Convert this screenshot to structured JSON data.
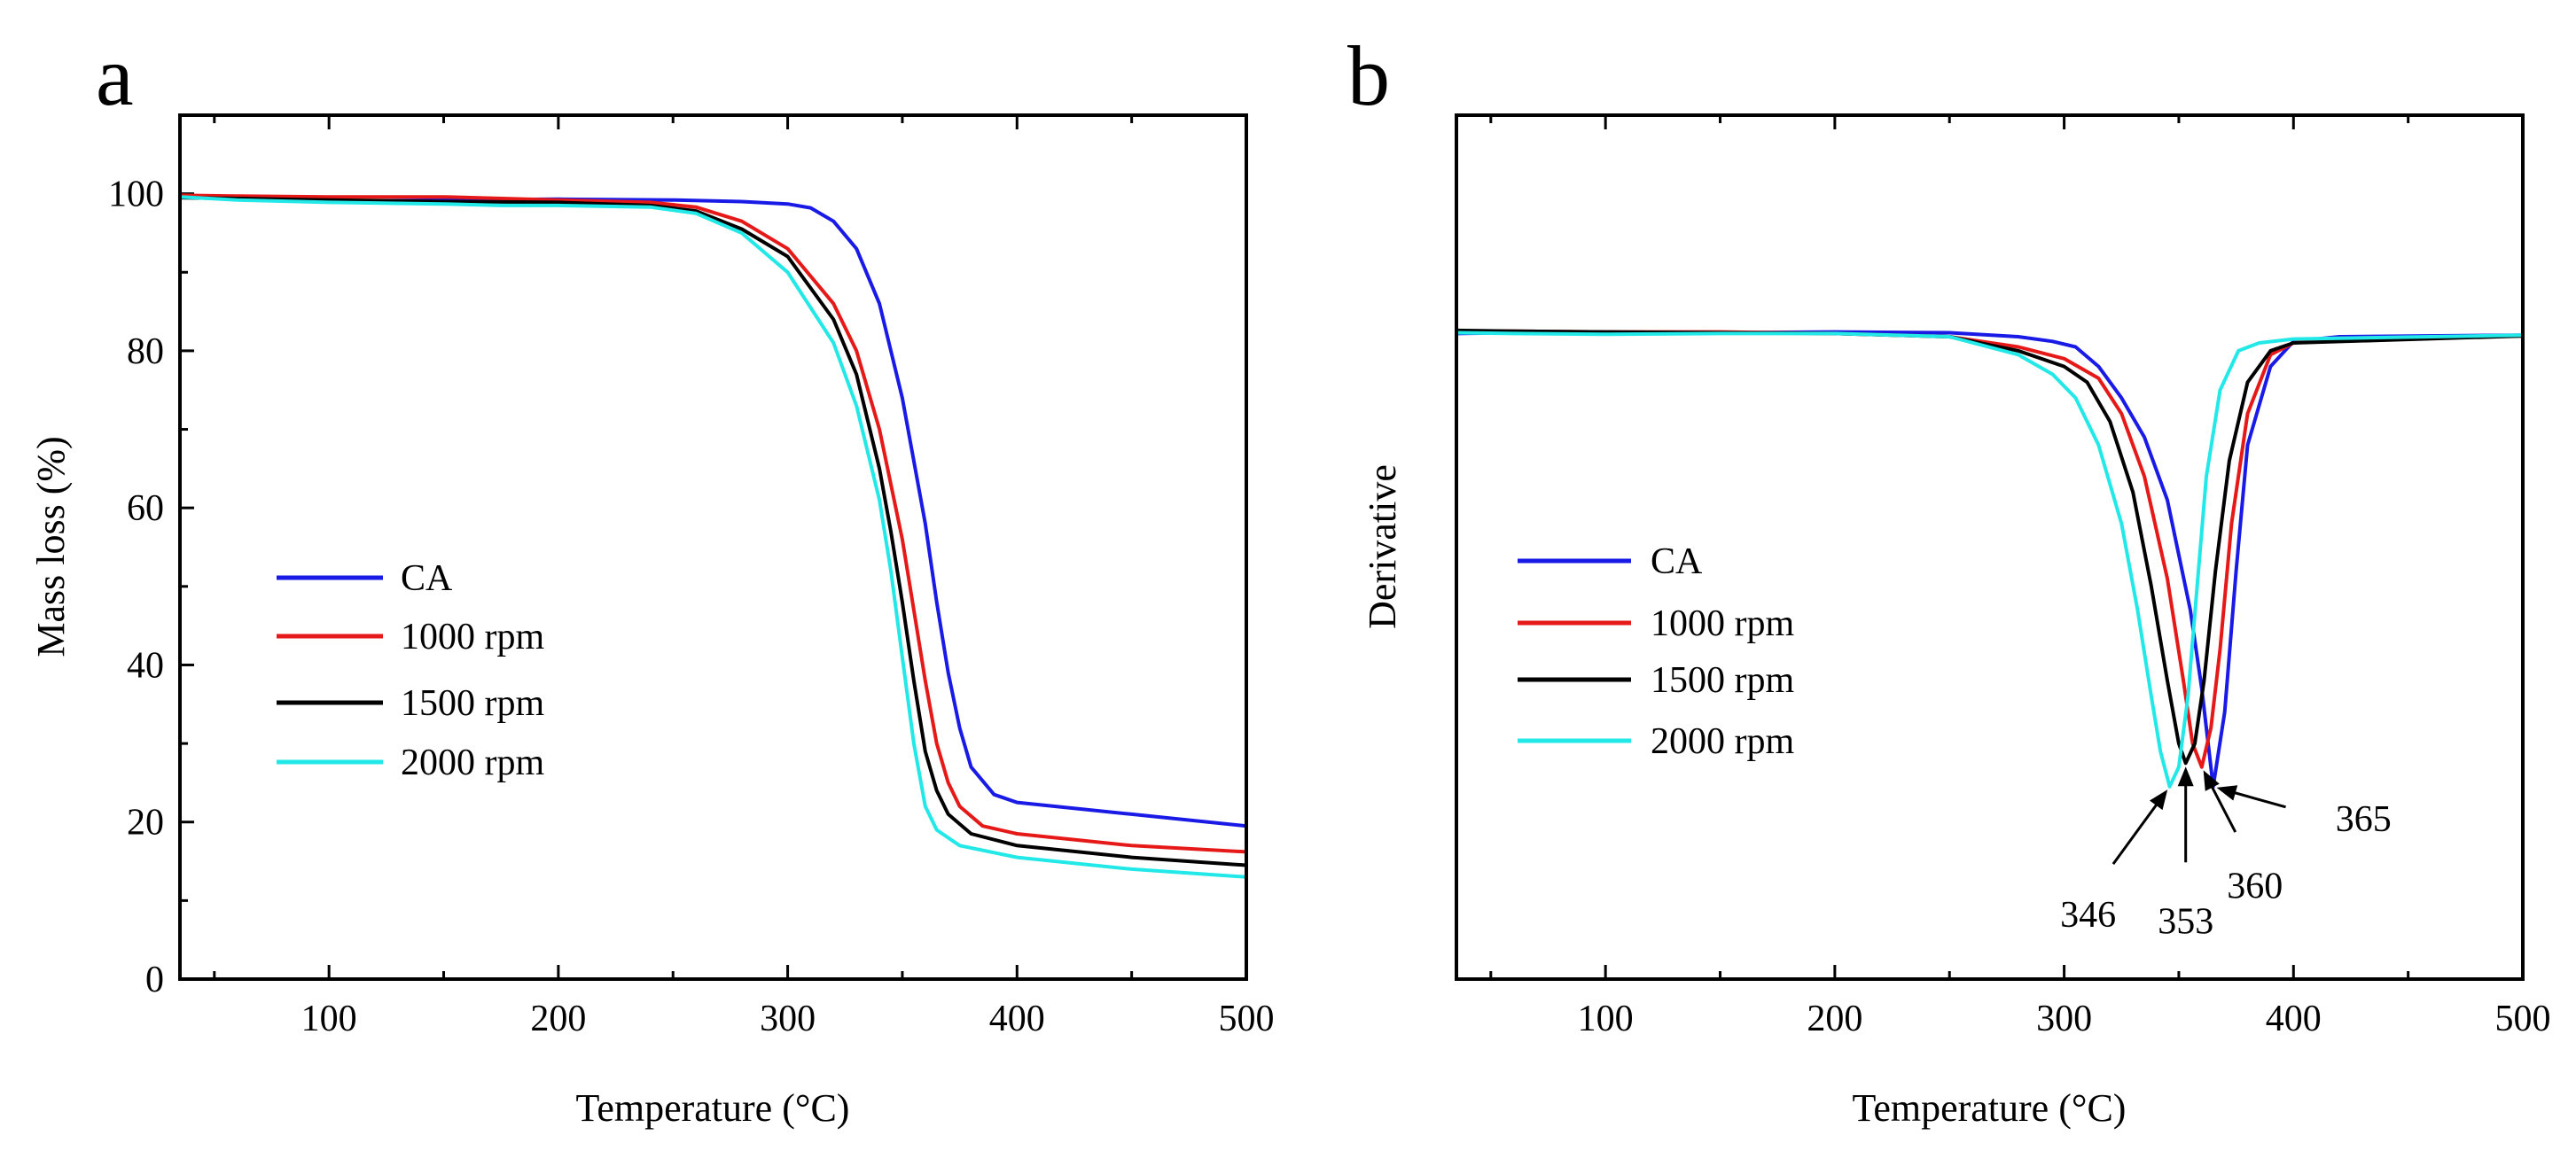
{
  "colors": {
    "CA": "#1a1ae6",
    "1000 rpm": "#e61919",
    "1500 rpm": "#000000",
    "2000 rpm": "#22e8e8"
  },
  "chart_data": [
    {
      "id": "a",
      "type": "line",
      "panel_label": "a",
      "xlabel": "Temperature (°C)",
      "ylabel": "Mass loss (%)",
      "xlim": [
        35,
        500
      ],
      "ylim": [
        0,
        110
      ],
      "xticks": [
        100,
        200,
        300,
        400,
        500
      ],
      "yticks": [
        0,
        20,
        40,
        60,
        80,
        100
      ],
      "legend_position": "center-left",
      "series": [
        {
          "name": "CA",
          "points": [
            [
              35,
              99.8
            ],
            [
              60,
              99.3
            ],
            [
              100,
              99.0
            ],
            [
              150,
              99.2
            ],
            [
              200,
              99.3
            ],
            [
              250,
              99.2
            ],
            [
              280,
              99.0
            ],
            [
              300,
              98.7
            ],
            [
              310,
              98.2
            ],
            [
              320,
              96.5
            ],
            [
              330,
              93
            ],
            [
              340,
              86
            ],
            [
              350,
              74
            ],
            [
              360,
              58
            ],
            [
              365,
              48
            ],
            [
              370,
              39
            ],
            [
              375,
              32
            ],
            [
              380,
              27
            ],
            [
              390,
              23.5
            ],
            [
              400,
              22.5
            ],
            [
              450,
              21
            ],
            [
              500,
              19.5
            ]
          ]
        },
        {
          "name": "1000 rpm",
          "points": [
            [
              35,
              99.8
            ],
            [
              60,
              99.7
            ],
            [
              100,
              99.6
            ],
            [
              150,
              99.6
            ],
            [
              200,
              99.2
            ],
            [
              240,
              98.9
            ],
            [
              260,
              98.3
            ],
            [
              280,
              96.5
            ],
            [
              300,
              93
            ],
            [
              320,
              86
            ],
            [
              330,
              80
            ],
            [
              340,
              70
            ],
            [
              350,
              56
            ],
            [
              355,
              47
            ],
            [
              360,
              38
            ],
            [
              365,
              30
            ],
            [
              370,
              25
            ],
            [
              375,
              22
            ],
            [
              385,
              19.5
            ],
            [
              400,
              18.5
            ],
            [
              450,
              17
            ],
            [
              500,
              16.2
            ]
          ]
        },
        {
          "name": "1500 rpm",
          "points": [
            [
              35,
              99.5
            ],
            [
              60,
              99.4
            ],
            [
              100,
              99.2
            ],
            [
              150,
              99
            ],
            [
              200,
              98.9
            ],
            [
              240,
              98.5
            ],
            [
              260,
              97.8
            ],
            [
              280,
              95.5
            ],
            [
              300,
              92
            ],
            [
              320,
              84
            ],
            [
              330,
              77
            ],
            [
              340,
              65
            ],
            [
              345,
              57
            ],
            [
              350,
              48
            ],
            [
              355,
              38
            ],
            [
              360,
              29
            ],
            [
              365,
              24
            ],
            [
              370,
              21
            ],
            [
              380,
              18.5
            ],
            [
              400,
              17
            ],
            [
              450,
              15.5
            ],
            [
              500,
              14.5
            ]
          ]
        },
        {
          "name": "2000 rpm",
          "points": [
            [
              35,
              99.6
            ],
            [
              60,
              99.2
            ],
            [
              100,
              98.9
            ],
            [
              150,
              98.7
            ],
            [
              175,
              98.5
            ],
            [
              200,
              98.5
            ],
            [
              240,
              98.3
            ],
            [
              260,
              97.5
            ],
            [
              280,
              95
            ],
            [
              300,
              90
            ],
            [
              320,
              81
            ],
            [
              330,
              73
            ],
            [
              340,
              61
            ],
            [
              345,
              52
            ],
            [
              350,
              41
            ],
            [
              355,
              30
            ],
            [
              360,
              22
            ],
            [
              365,
              19
            ],
            [
              375,
              17
            ],
            [
              400,
              15.5
            ],
            [
              450,
              14
            ],
            [
              500,
              13
            ]
          ]
        }
      ]
    },
    {
      "id": "b",
      "type": "line",
      "panel_label": "b",
      "xlabel": "Temperature (°C)",
      "ylabel": "Derivative",
      "xlim": [
        35,
        500
      ],
      "ylim": [
        0,
        110
      ],
      "xticks": [
        100,
        200,
        300,
        400,
        500
      ],
      "yticks_shown": false,
      "legend_position": "center-left",
      "series": [
        {
          "name": "CA",
          "points": [
            [
              35,
              82.2
            ],
            [
              60,
              82.3
            ],
            [
              100,
              82.3
            ],
            [
              150,
              82.3
            ],
            [
              200,
              82.4
            ],
            [
              250,
              82.3
            ],
            [
              280,
              81.8
            ],
            [
              295,
              81.2
            ],
            [
              305,
              80.5
            ],
            [
              315,
              78
            ],
            [
              325,
              74
            ],
            [
              335,
              69
            ],
            [
              345,
              61
            ],
            [
              355,
              47
            ],
            [
              360,
              37
            ],
            [
              365,
              24.5
            ],
            [
              370,
              34
            ],
            [
              375,
              52
            ],
            [
              380,
              68
            ],
            [
              390,
              78
            ],
            [
              400,
              81.2
            ],
            [
              420,
              81.8
            ],
            [
              500,
              82.0
            ]
          ]
        },
        {
          "name": "1000 rpm",
          "points": [
            [
              35,
              82.5
            ],
            [
              60,
              82.5
            ],
            [
              100,
              82.4
            ],
            [
              150,
              82.4
            ],
            [
              200,
              82.2
            ],
            [
              250,
              81.8
            ],
            [
              280,
              80.5
            ],
            [
              300,
              79
            ],
            [
              315,
              76.5
            ],
            [
              325,
              72
            ],
            [
              335,
              64
            ],
            [
              345,
              51
            ],
            [
              352,
              38
            ],
            [
              356,
              30
            ],
            [
              360,
              27
            ],
            [
              364,
              32
            ],
            [
              368,
              42
            ],
            [
              373,
              58
            ],
            [
              380,
              72
            ],
            [
              390,
              79.5
            ],
            [
              400,
              81
            ],
            [
              420,
              81.6
            ],
            [
              500,
              81.9
            ]
          ]
        },
        {
          "name": "1500 rpm",
          "points": [
            [
              35,
              82.6
            ],
            [
              60,
              82.5
            ],
            [
              100,
              82.4
            ],
            [
              150,
              82.3
            ],
            [
              200,
              82.2
            ],
            [
              250,
              81.8
            ],
            [
              280,
              80
            ],
            [
              300,
              78
            ],
            [
              310,
              76
            ],
            [
              320,
              71
            ],
            [
              330,
              62
            ],
            [
              338,
              50
            ],
            [
              345,
              38
            ],
            [
              350,
              30
            ],
            [
              353,
              27.5
            ],
            [
              357,
              30
            ],
            [
              361,
              38
            ],
            [
              366,
              52
            ],
            [
              372,
              66
            ],
            [
              380,
              76
            ],
            [
              390,
              80
            ],
            [
              400,
              81
            ],
            [
              500,
              81.9
            ]
          ]
        },
        {
          "name": "2000 rpm",
          "points": [
            [
              35,
              82.3
            ],
            [
              60,
              82.2
            ],
            [
              100,
              82.1
            ],
            [
              150,
              82.2
            ],
            [
              200,
              82.2
            ],
            [
              250,
              81.8
            ],
            [
              280,
              79.5
            ],
            [
              295,
              77
            ],
            [
              305,
              74
            ],
            [
              315,
              68
            ],
            [
              325,
              58
            ],
            [
              332,
              47
            ],
            [
              338,
              36
            ],
            [
              342,
              29
            ],
            [
              346,
              24.5
            ],
            [
              350,
              27
            ],
            [
              354,
              36
            ],
            [
              358,
              50
            ],
            [
              362,
              64
            ],
            [
              368,
              75
            ],
            [
              376,
              80
            ],
            [
              385,
              81
            ],
            [
              400,
              81.5
            ],
            [
              500,
              82
            ]
          ]
        }
      ],
      "annotations": [
        {
          "text": "346",
          "x": 346,
          "y": 24.5
        },
        {
          "text": "353",
          "x": 353,
          "y": 27.5
        },
        {
          "text": "360",
          "x": 360,
          "y": 27
        },
        {
          "text": "365",
          "x": 365,
          "y": 24.5
        }
      ]
    }
  ]
}
